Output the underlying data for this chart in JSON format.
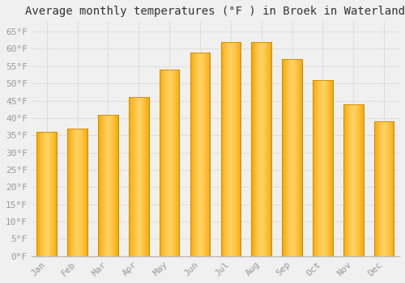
{
  "title": "Average monthly temperatures (°F ) in Broek in Waterland",
  "months": [
    "Jan",
    "Feb",
    "Mar",
    "Apr",
    "May",
    "Jun",
    "Jul",
    "Aug",
    "Sep",
    "Oct",
    "Nov",
    "Dec"
  ],
  "values": [
    36,
    37,
    41,
    46,
    54,
    59,
    62,
    62,
    57,
    51,
    44,
    39
  ],
  "bar_color_light": "#FFD060",
  "bar_color_dark": "#F5A800",
  "bar_edge_color": "#CC8800",
  "background_color": "#F0F0F0",
  "grid_color": "#DDDDDD",
  "ylim": [
    0,
    68
  ],
  "yticks": [
    0,
    5,
    10,
    15,
    20,
    25,
    30,
    35,
    40,
    45,
    50,
    55,
    60,
    65
  ],
  "tick_label_color": "#999999",
  "title_fontsize": 10,
  "tick_fontsize": 8,
  "bar_width": 0.65
}
